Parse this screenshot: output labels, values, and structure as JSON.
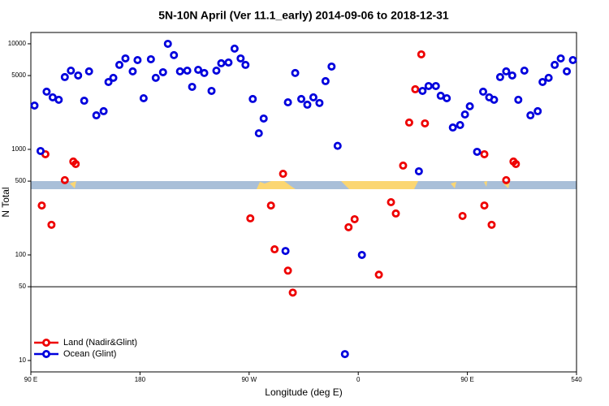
{
  "chart_data": {
    "type": "scatter",
    "title": "5N-10N April (Ver 11.1_early)   2014-09-06 to 2018-12-31",
    "x_label": "Longitude (deg E)",
    "y_label": "N Total",
    "log_y": true,
    "hline": 50,
    "legend": "bottom-left",
    "xlim": [
      90,
      540
    ],
    "xticks": [
      {
        "value": 90,
        "label": "90 E"
      },
      180,
      {
        "value": 270,
        "label": "90 W"
      },
      {
        "value": 360,
        "label": "0"
      },
      {
        "value": 450,
        "label": "90 E"
      },
      540
    ],
    "ylim": [
      7.8,
      12800
    ],
    "yticks": [
      10,
      50,
      100,
      500,
      1000,
      5000,
      10000
    ],
    "series": [
      {
        "name": "Land (Nadir&Glint)",
        "color": "#ee0000",
        "x": [
          102,
          99,
          107,
          118,
          125,
          127,
          271,
          288,
          291,
          298,
          302,
          306,
          352,
          357,
          377,
          387,
          391,
          397,
          402,
          407,
          412,
          415,
          446,
          464,
          464,
          470,
          482,
          488,
          490
        ],
        "values": [
          899,
          294,
          193,
          511,
          767,
          727,
          222,
          294,
          113,
          587,
          71,
          44,
          183,
          218,
          65,
          316,
          247,
          702,
          1795,
          3710,
          7940,
          1762,
          234,
          899,
          294,
          193,
          511,
          767,
          727
        ]
      },
      {
        "name": "Ocean (Glint)",
        "color": "#0000dd",
        "x": [
          93,
          98,
          103,
          108,
          113,
          118,
          123,
          129,
          134,
          138,
          144,
          150,
          154,
          158,
          163,
          168,
          174,
          178,
          183,
          189,
          193,
          199,
          203,
          208,
          213,
          219,
          223,
          228,
          233,
          239,
          243,
          247,
          253,
          258,
          263,
          267,
          273,
          278,
          282,
          300,
          302,
          308,
          313,
          318,
          323,
          328,
          333,
          338,
          343,
          349,
          363,
          410,
          413,
          418,
          424,
          428,
          433,
          438,
          444,
          448,
          452,
          458,
          463,
          468,
          472,
          477,
          482,
          487,
          492,
          497,
          502,
          508,
          512,
          517,
          522,
          527,
          532,
          537
        ],
        "values": [
          2600,
          965,
          3520,
          3110,
          2950,
          4840,
          5570,
          5010,
          2890,
          5480,
          2100,
          2300,
          4350,
          4760,
          6310,
          7270,
          5480,
          7010,
          3050,
          7140,
          4760,
          5380,
          10000,
          7810,
          5480,
          5570,
          3910,
          5670,
          5290,
          3580,
          5570,
          6540,
          6650,
          9000,
          7270,
          6310,
          3000,
          1420,
          1960,
          109,
          2790,
          5290,
          3000,
          2650,
          3110,
          2750,
          4430,
          6090,
          1080,
          11.5,
          100,
          620,
          3580,
          3980,
          3980,
          3220,
          3050,
          1610,
          1700,
          2140,
          2560,
          948,
          3520,
          3110,
          2950,
          4840,
          5480,
          5010,
          2950,
          5570,
          2100,
          2300,
          4350,
          4760,
          6310,
          7270,
          5480,
          7010
        ]
      }
    ]
  }
}
